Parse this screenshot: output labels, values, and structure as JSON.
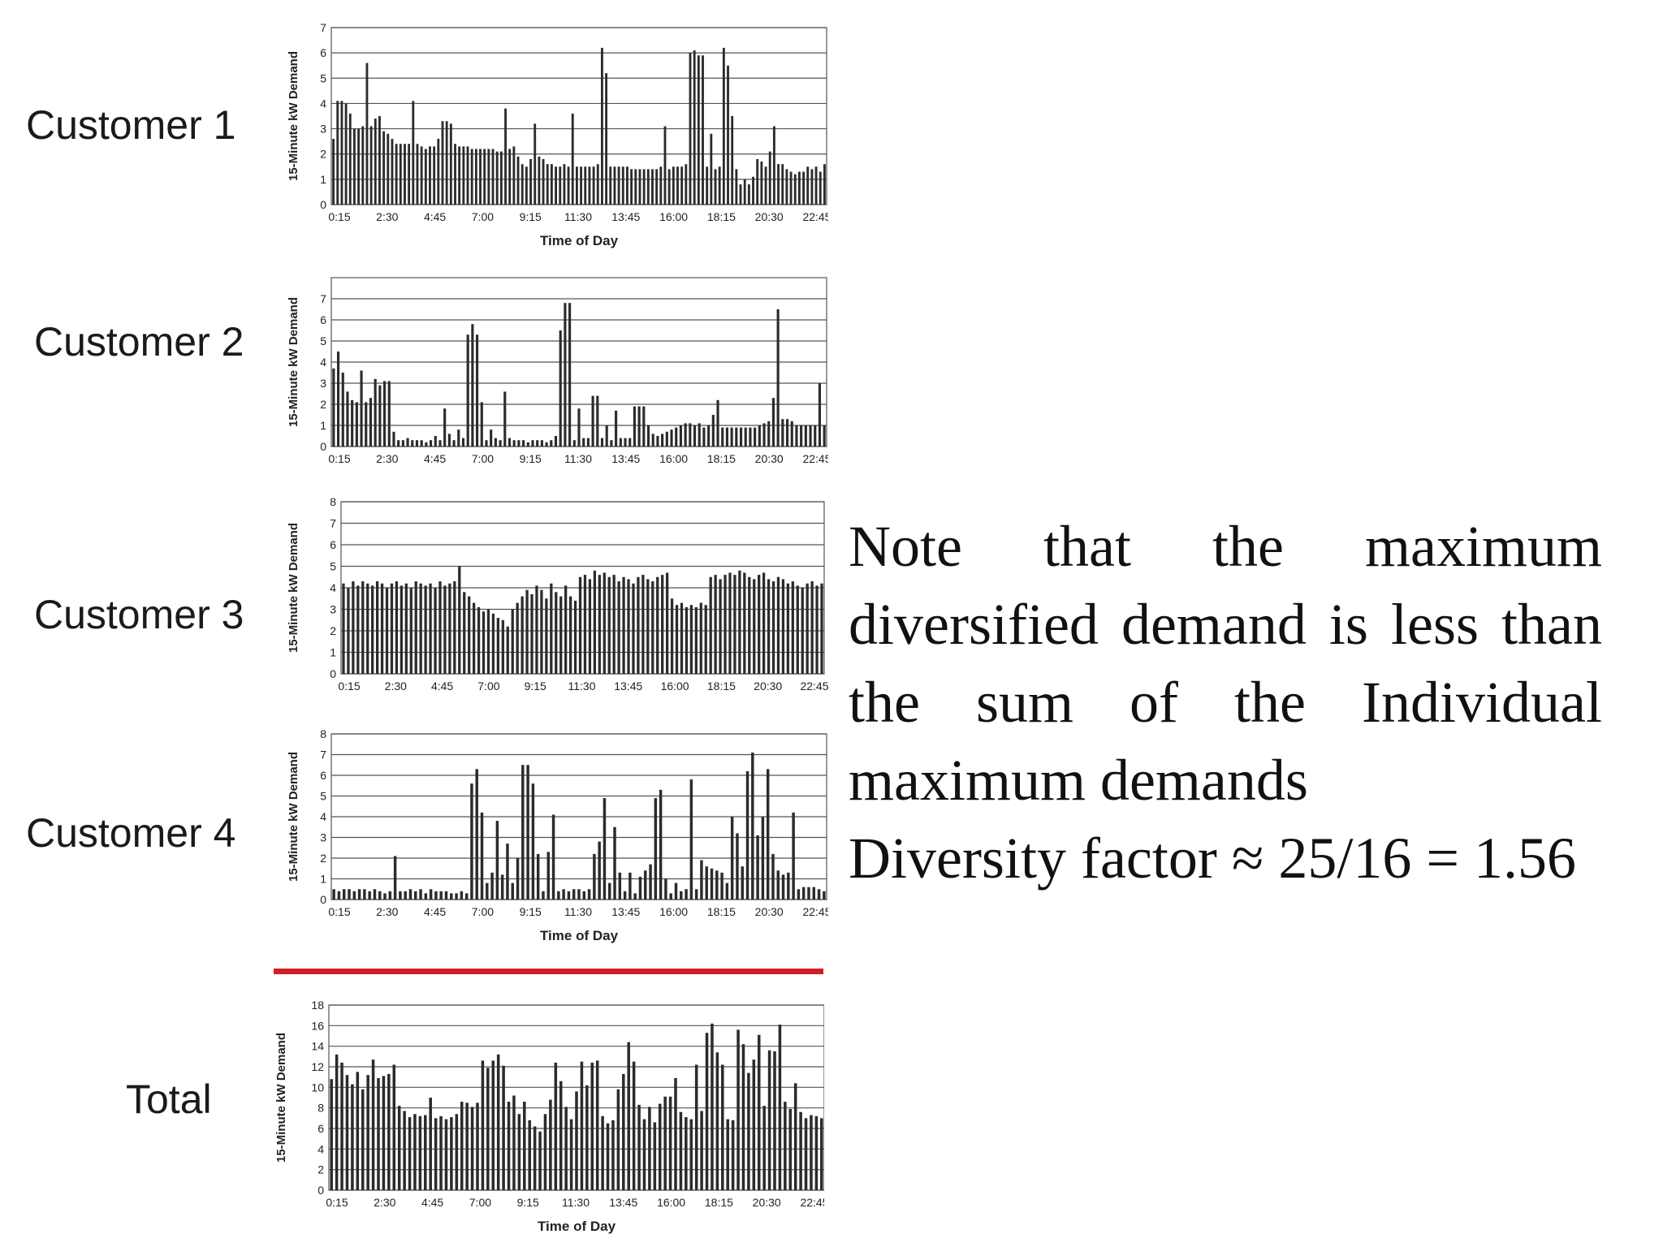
{
  "slide": {
    "note_text": "Note that the maximum diversified demand is less than the sum of the Individual maximum demands",
    "diversity_text": "Diversity factor ≈ 25/16 = 1.56"
  },
  "colors": {
    "bar": "#2b2b2b",
    "grid": "#555555",
    "separator": "#d21f26",
    "text": "#1a1a1a"
  },
  "chart_data": [
    {
      "type": "bar",
      "row_label": "Customer 1",
      "xlabel": "Time of Day",
      "ylabel": "15-Minute kW Demand",
      "ylim": [
        0,
        7
      ],
      "yticks": [
        0,
        1,
        2,
        3,
        4,
        5,
        6,
        7
      ],
      "xticks": [
        "0:15",
        "2:30",
        "4:45",
        "7:00",
        "9:15",
        "11:30",
        "13:45",
        "16:00",
        "18:15",
        "20:30",
        "22:45"
      ],
      "grid": true,
      "x_start": "0:15",
      "interval_minutes": 15,
      "values": [
        2.6,
        4.1,
        4.1,
        4.0,
        3.6,
        3.0,
        3.0,
        3.1,
        5.6,
        3.1,
        3.4,
        3.5,
        2.9,
        2.8,
        2.6,
        2.4,
        2.4,
        2.4,
        2.4,
        4.1,
        2.4,
        2.3,
        2.2,
        2.3,
        2.3,
        2.6,
        3.3,
        3.3,
        3.2,
        2.4,
        2.3,
        2.3,
        2.3,
        2.2,
        2.2,
        2.2,
        2.2,
        2.2,
        2.2,
        2.1,
        2.1,
        3.8,
        2.2,
        2.3,
        1.9,
        1.6,
        1.5,
        1.8,
        3.2,
        1.9,
        1.8,
        1.6,
        1.6,
        1.5,
        1.5,
        1.6,
        1.5,
        3.6,
        1.5,
        1.5,
        1.5,
        1.5,
        1.5,
        1.6,
        6.2,
        5.2,
        1.5,
        1.5,
        1.5,
        1.5,
        1.5,
        1.4,
        1.4,
        1.4,
        1.4,
        1.4,
        1.4,
        1.4,
        1.5,
        3.1,
        1.4,
        1.5,
        1.5,
        1.5,
        1.6,
        6.0,
        6.1,
        5.9,
        5.9,
        1.5,
        2.8,
        1.4,
        1.5,
        6.2,
        5.5,
        3.5,
        1.4,
        0.8,
        1.0,
        0.8,
        1.1,
        1.8,
        1.7,
        1.5,
        2.1,
        3.1,
        1.6,
        1.6,
        1.4,
        1.3,
        1.2,
        1.3,
        1.3,
        1.5,
        1.4,
        1.5,
        1.3,
        1.6
      ]
    },
    {
      "type": "bar",
      "row_label": "Customer 2",
      "xlabel": "",
      "ylabel": "15-Minute kW Demand",
      "ylim": [
        0,
        8
      ],
      "yticks": [
        0,
        1,
        2,
        3,
        4,
        5,
        6,
        7
      ],
      "xticks": [
        "0:15",
        "2:30",
        "4:45",
        "7:00",
        "9:15",
        "11:30",
        "13:45",
        "16:00",
        "18:15",
        "20:30",
        "22:45"
      ],
      "grid": true,
      "x_start": "0:15",
      "interval_minutes": 15,
      "values": [
        3.7,
        4.5,
        3.5,
        2.6,
        2.2,
        2.1,
        3.6,
        2.1,
        2.3,
        3.2,
        2.9,
        3.1,
        3.1,
        0.7,
        0.3,
        0.3,
        0.4,
        0.3,
        0.3,
        0.3,
        0.2,
        0.3,
        0.5,
        0.3,
        1.8,
        0.6,
        0.3,
        0.8,
        0.4,
        5.3,
        5.8,
        5.3,
        2.1,
        0.3,
        0.8,
        0.4,
        0.3,
        2.6,
        0.4,
        0.3,
        0.3,
        0.3,
        0.2,
        0.3,
        0.3,
        0.3,
        0.2,
        0.3,
        0.5,
        5.5,
        6.8,
        6.8,
        0.3,
        1.8,
        0.4,
        0.4,
        2.4,
        2.4,
        0.4,
        1.0,
        0.3,
        1.7,
        0.4,
        0.4,
        0.4,
        1.9,
        1.9,
        1.9,
        1.0,
        0.6,
        0.5,
        0.6,
        0.7,
        0.8,
        0.9,
        1.0,
        1.1,
        1.1,
        1.0,
        1.1,
        0.9,
        1.0,
        1.5,
        2.2,
        0.9,
        0.9,
        0.9,
        0.9,
        0.9,
        0.9,
        0.9,
        0.9,
        1.0,
        1.1,
        1.2,
        2.3,
        6.5,
        1.3,
        1.3,
        1.2,
        1.0,
        1.0,
        1.0,
        1.0,
        1.0,
        3.0,
        1.0
      ]
    },
    {
      "type": "bar",
      "row_label": "Customer 3",
      "xlabel": "",
      "ylabel": "15-Minute kW Demand",
      "ylim": [
        0,
        8
      ],
      "yticks": [
        0,
        1,
        2,
        3,
        4,
        5,
        6,
        7,
        8
      ],
      "xticks": [
        "0:15",
        "2:30",
        "4:45",
        "7:00",
        "9:15",
        "11:30",
        "13:45",
        "16:00",
        "18:15",
        "20:30",
        "22:45"
      ],
      "grid": true,
      "x_start": "0:15",
      "interval_minutes": 15,
      "values": [
        4.2,
        4.0,
        4.3,
        4.1,
        4.3,
        4.2,
        4.1,
        4.3,
        4.2,
        4.0,
        4.2,
        4.3,
        4.1,
        4.2,
        4.0,
        4.3,
        4.2,
        4.1,
        4.2,
        4.0,
        4.3,
        4.1,
        4.2,
        4.3,
        5.0,
        3.8,
        3.6,
        3.3,
        3.1,
        2.9,
        3.0,
        2.8,
        2.6,
        2.5,
        2.2,
        3.0,
        3.3,
        3.6,
        3.9,
        3.7,
        4.1,
        3.9,
        3.5,
        4.2,
        3.8,
        3.6,
        4.1,
        3.6,
        3.4,
        4.5,
        4.6,
        4.4,
        4.8,
        4.6,
        4.7,
        4.5,
        4.6,
        4.3,
        4.5,
        4.4,
        4.2,
        4.5,
        4.6,
        4.4,
        4.3,
        4.5,
        4.6,
        4.7,
        3.5,
        3.2,
        3.3,
        3.1,
        3.2,
        3.1,
        3.3,
        3.2,
        4.5,
        4.6,
        4.4,
        4.6,
        4.7,
        4.6,
        4.8,
        4.7,
        4.5,
        4.4,
        4.6,
        4.7,
        4.4,
        4.3,
        4.5,
        4.4,
        4.2,
        4.3,
        4.1,
        4.0,
        4.2,
        4.3,
        4.1,
        4.2
      ]
    },
    {
      "type": "bar",
      "row_label": "Customer 4",
      "xlabel": "Time of Day",
      "ylabel": "15-Minute kW Demand",
      "ylim": [
        0,
        8
      ],
      "yticks": [
        0,
        1,
        2,
        3,
        4,
        5,
        6,
        7,
        8
      ],
      "xticks": [
        "0:15",
        "2:30",
        "4:45",
        "7:00",
        "9:15",
        "11:30",
        "13:45",
        "16:00",
        "18:15",
        "20:30",
        "22:45"
      ],
      "grid": true,
      "x_start": "0:15",
      "interval_minutes": 15,
      "values": [
        0.5,
        0.4,
        0.5,
        0.5,
        0.4,
        0.5,
        0.5,
        0.4,
        0.5,
        0.4,
        0.3,
        0.4,
        2.1,
        0.4,
        0.4,
        0.5,
        0.4,
        0.5,
        0.3,
        0.5,
        0.4,
        0.4,
        0.4,
        0.3,
        0.3,
        0.4,
        0.3,
        5.6,
        6.3,
        4.2,
        0.8,
        1.3,
        3.8,
        1.2,
        2.7,
        0.8,
        2.0,
        6.5,
        6.5,
        5.6,
        2.2,
        0.4,
        2.3,
        4.1,
        0.4,
        0.5,
        0.4,
        0.5,
        0.5,
        0.4,
        0.5,
        2.2,
        2.8,
        4.9,
        0.8,
        3.5,
        1.3,
        0.4,
        1.3,
        0.3,
        1.1,
        1.4,
        1.7,
        4.9,
        5.3,
        1.0,
        0.3,
        0.8,
        0.4,
        0.5,
        5.8,
        0.5,
        1.9,
        1.6,
        1.5,
        1.4,
        1.3,
        0.8,
        4.0,
        3.2,
        1.6,
        6.2,
        7.1,
        3.1,
        4.0,
        6.3,
        2.2,
        1.4,
        1.2,
        1.3,
        4.2,
        0.5,
        0.6,
        0.6,
        0.6,
        0.5,
        0.4
      ]
    },
    {
      "type": "bar",
      "row_label": "Total",
      "xlabel": "Time of Day",
      "ylabel": "15-Minute kW Demand",
      "ylim": [
        0,
        18
      ],
      "yticks": [
        0,
        2,
        4,
        6,
        8,
        10,
        12,
        14,
        16,
        18
      ],
      "xticks": [
        "0:15",
        "2:30",
        "4:45",
        "7:00",
        "9:15",
        "11:30",
        "13:45",
        "16:00",
        "18:15",
        "20:30",
        "22:45"
      ],
      "grid": true,
      "x_start": "0:15",
      "interval_minutes": 15,
      "values": [
        10.8,
        13.2,
        12.4,
        11.2,
        10.3,
        11.5,
        9.8,
        11.2,
        12.7,
        10.9,
        11.1,
        11.3,
        12.2,
        8.2,
        7.7,
        7.1,
        7.4,
        7.2,
        7.3,
        9.0,
        7.0,
        7.2,
        6.9,
        7.1,
        7.4,
        8.6,
        8.5,
        8.1,
        8.5,
        12.6,
        11.9,
        12.6,
        13.2,
        12.1,
        8.6,
        9.2,
        7.4,
        8.6,
        6.8,
        6.2,
        5.7,
        7.4,
        8.8,
        12.4,
        10.6,
        8.1,
        6.9,
        9.6,
        12.5,
        10.2,
        12.4,
        12.6,
        7.2,
        6.5,
        6.8,
        9.8,
        11.3,
        14.4,
        12.5,
        8.3,
        6.9,
        8.1,
        6.6,
        8.4,
        9.1,
        9.1,
        10.9,
        7.6,
        7.1,
        6.9,
        12.2,
        7.7,
        15.3,
        16.2,
        13.4,
        12.2,
        6.9,
        6.8,
        15.6,
        14.2,
        11.4,
        12.7,
        15.1,
        8.2,
        13.6,
        13.5,
        16.1,
        8.6,
        7.9,
        10.4,
        7.6,
        7.0,
        7.3,
        7.2,
        7.0
      ]
    }
  ]
}
